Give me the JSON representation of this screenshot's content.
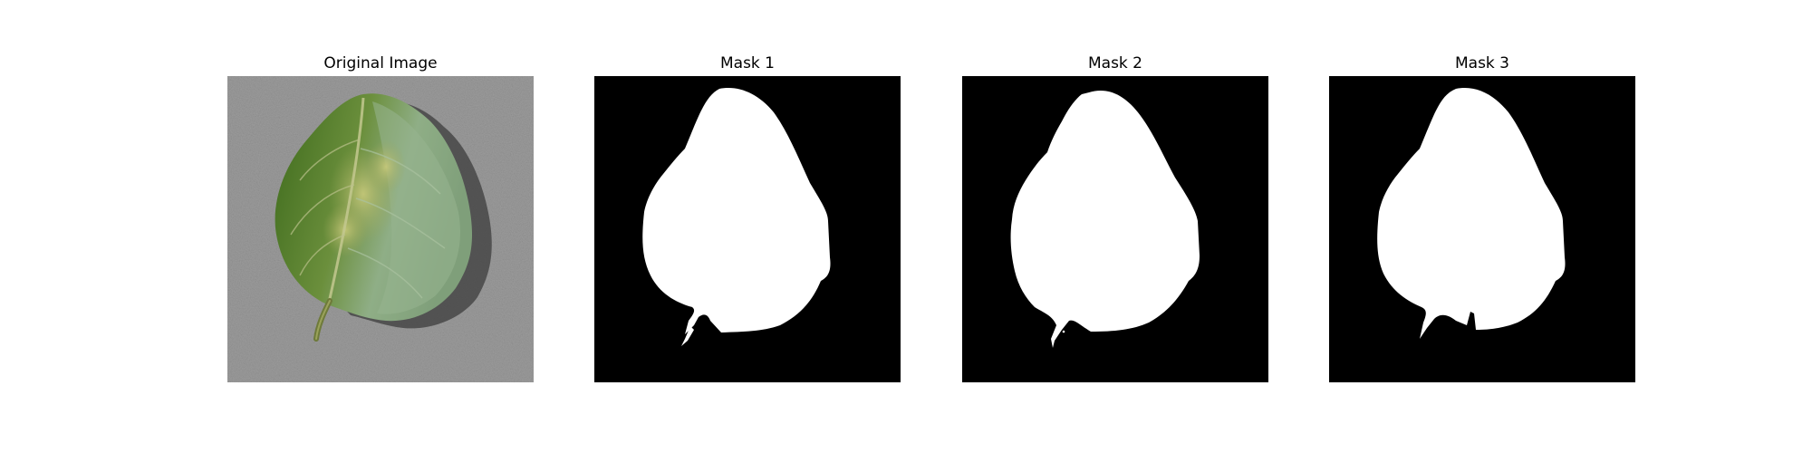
{
  "figure": {
    "panels": [
      {
        "title": "Original Image",
        "kind": "photo",
        "subject": "leaf"
      },
      {
        "title": "Mask 1",
        "kind": "mask",
        "variant": 1
      },
      {
        "title": "Mask 2",
        "kind": "mask",
        "variant": 2
      },
      {
        "title": "Mask 3",
        "kind": "mask",
        "variant": 3
      }
    ]
  },
  "colors": {
    "background": "#ffffff",
    "mask_background": "#000000",
    "mask_foreground": "#ffffff",
    "photo_background": "#9e9e9e",
    "leaf_dark": "#3f6b1e",
    "leaf_light": "#8fae86",
    "leaf_shadow": "#3a3a3a"
  }
}
